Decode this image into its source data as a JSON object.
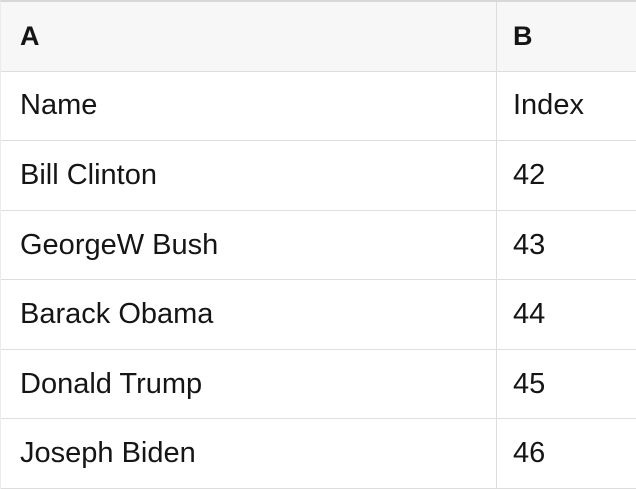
{
  "table": {
    "columns": [
      {
        "label": "A"
      },
      {
        "label": "B"
      }
    ],
    "rows": [
      [
        "Name",
        "Index"
      ],
      [
        "Bill Clinton",
        "42"
      ],
      [
        "GeorgeW Bush",
        "43"
      ],
      [
        "Barack Obama",
        "44"
      ],
      [
        "Donald Trump",
        "45"
      ],
      [
        "Joseph Biden",
        "46"
      ]
    ],
    "colors": {
      "header_bg": "#f7f7f7",
      "row_bg": "#ffffff",
      "grid_border": "#dddddd",
      "top_border": "#d8d8d8",
      "edge_border": "#ececec",
      "text": "#151515"
    }
  }
}
